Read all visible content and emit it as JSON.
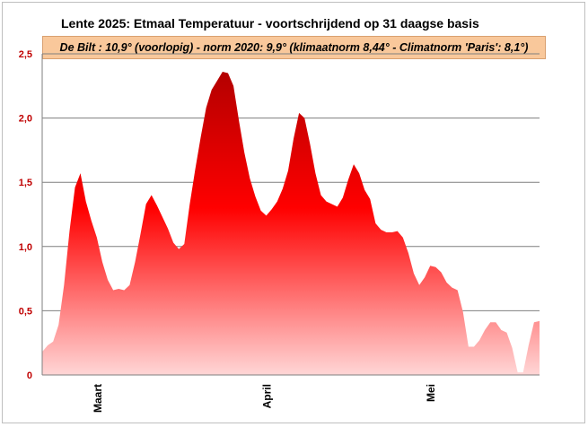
{
  "chart_data": {
    "type": "area",
    "title": "Lente 2025:  Etmaal Temperatuur - voortschrijdend op 31 daagse basis",
    "subtitle": "De Bilt : 10,9° (voorlopig) - norm 2020: 9,9°  (klimaatnorm 8,44° - Climatnorm 'Paris': 8,1°)",
    "xlabel": "",
    "ylabel": "",
    "ylim": [
      0,
      2.5
    ],
    "y_ticks": [
      "0",
      "0,5",
      "1,0",
      "1,5",
      "2,0",
      "2,5"
    ],
    "x_ticks": [
      {
        "day": 10,
        "label": "Maart"
      },
      {
        "day": 41,
        "label": "April"
      },
      {
        "day": 71,
        "label": "Mei"
      }
    ],
    "grid": true,
    "colors": {
      "area_top": "#b30000",
      "area_mid": "#ff0000",
      "area_bottom": "#ffd6d6",
      "tick_label": "#c00000",
      "banner_bg": "#f9c89b",
      "gridline": "#7f7f7f"
    },
    "series": [
      {
        "values": [
          0.18,
          0.23,
          0.26,
          0.39,
          0.7,
          1.12,
          1.46,
          1.57,
          1.35,
          1.2,
          1.07,
          0.88,
          0.74,
          0.66,
          0.67,
          0.66,
          0.7,
          0.88,
          1.1,
          1.33,
          1.4,
          1.32,
          1.23,
          1.14,
          1.03,
          0.98,
          1.02,
          1.33,
          1.6,
          1.85,
          2.08,
          2.22,
          2.29,
          2.36,
          2.35,
          2.25,
          1.98,
          1.73,
          1.53,
          1.39,
          1.28,
          1.24,
          1.29,
          1.35,
          1.45,
          1.59,
          1.84,
          2.04,
          2.0,
          1.8,
          1.57,
          1.4,
          1.35,
          1.33,
          1.31,
          1.38,
          1.52,
          1.64,
          1.57,
          1.44,
          1.37,
          1.18,
          1.13,
          1.11,
          1.11,
          1.12,
          1.07,
          0.95,
          0.79,
          0.7,
          0.76,
          0.85,
          0.84,
          0.8,
          0.72,
          0.68,
          0.66,
          0.49,
          0.22,
          0.22,
          0.27,
          0.35,
          0.41,
          0.41,
          0.35,
          0.33,
          0.21,
          0.02,
          0.02,
          0.23,
          0.41,
          0.42
        ]
      }
    ]
  }
}
